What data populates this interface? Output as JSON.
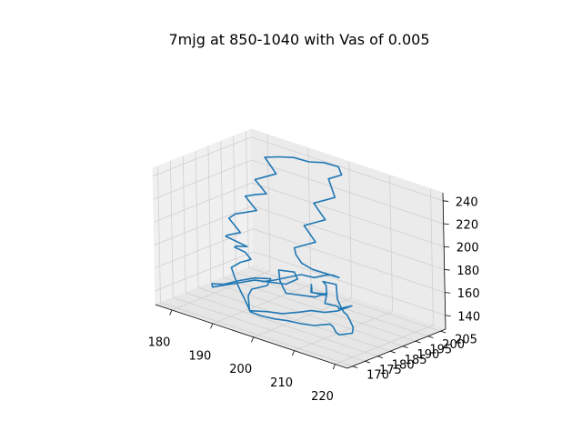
{
  "chart_data": {
    "type": "line3d",
    "title": "7mjg at 850-1040 with Vas of 0.005",
    "xlabel": "",
    "ylabel": "",
    "zlabel": "",
    "x_ticks": [
      "180",
      "190",
      "200",
      "210",
      "220"
    ],
    "y_ticks": [
      "170",
      "175",
      "180",
      "185",
      "190",
      "195",
      "200",
      "205"
    ],
    "z_ticks": [
      "140",
      "160",
      "180",
      "200",
      "220",
      "240"
    ],
    "xlim": [
      176,
      223
    ],
    "ylim": [
      168,
      207
    ],
    "zlim": [
      128,
      247
    ],
    "grid": true,
    "series": [
      {
        "color": "#1f77b4",
        "points": [
          [
            196,
            203,
            129
          ],
          [
            194,
            201,
            131
          ],
          [
            192,
            204,
            133
          ],
          [
            195,
            199,
            134
          ],
          [
            197,
            202,
            132
          ],
          [
            199,
            198,
            130
          ],
          [
            201,
            200,
            128
          ],
          [
            203,
            197,
            131
          ],
          [
            205,
            199,
            134
          ],
          [
            204,
            195,
            132
          ],
          [
            202,
            193,
            130
          ],
          [
            200,
            191,
            131
          ],
          [
            198,
            189,
            129
          ],
          [
            196,
            186,
            128
          ],
          [
            194,
            183,
            130
          ],
          [
            191,
            181,
            129
          ],
          [
            189,
            184,
            131
          ],
          [
            187,
            187,
            132
          ],
          [
            186,
            190,
            134
          ],
          [
            188,
            193,
            137
          ],
          [
            187,
            196,
            139
          ],
          [
            185,
            193,
            140
          ],
          [
            183,
            190,
            138
          ],
          [
            181,
            187,
            135
          ],
          [
            180,
            184,
            137
          ],
          [
            182,
            181,
            139
          ],
          [
            184,
            182,
            142
          ],
          [
            186,
            185,
            144
          ],
          [
            188,
            188,
            146
          ],
          [
            190,
            191,
            144
          ],
          [
            192,
            194,
            142
          ],
          [
            193,
            197,
            145
          ],
          [
            191,
            199,
            147
          ],
          [
            189,
            196,
            149
          ],
          [
            191,
            193,
            151
          ],
          [
            193,
            190,
            150
          ],
          [
            195,
            188,
            148
          ],
          [
            197,
            186,
            147
          ],
          [
            199,
            188,
            146
          ],
          [
            201,
            191,
            144
          ],
          [
            202,
            194,
            146
          ],
          [
            200,
            197,
            148
          ],
          [
            198,
            199,
            147
          ],
          [
            200,
            201,
            145
          ],
          [
            202,
            198,
            143
          ],
          [
            204,
            195,
            142
          ],
          [
            206,
            193,
            140
          ],
          [
            208,
            191,
            139
          ],
          [
            210,
            189,
            141
          ],
          [
            212,
            187,
            140
          ],
          [
            214,
            185,
            138
          ],
          [
            215,
            183,
            136
          ],
          [
            213,
            181,
            134
          ],
          [
            211,
            183,
            132
          ],
          [
            209,
            185,
            133
          ],
          [
            207,
            187,
            131
          ],
          [
            205,
            184,
            130
          ],
          [
            203,
            182,
            131
          ],
          [
            201,
            180,
            133
          ],
          [
            199,
            178,
            134
          ],
          [
            197,
            176,
            136
          ],
          [
            195,
            175,
            138
          ],
          [
            193,
            177,
            140
          ],
          [
            191,
            179,
            142
          ],
          [
            189,
            181,
            143
          ],
          [
            187,
            183,
            145
          ],
          [
            185,
            185,
            148
          ],
          [
            183,
            187,
            152
          ],
          [
            184,
            189,
            156
          ],
          [
            186,
            190,
            160
          ],
          [
            184,
            191,
            163
          ],
          [
            182,
            190,
            166
          ],
          [
            183,
            189,
            169
          ],
          [
            185,
            188,
            172
          ],
          [
            187,
            187,
            175
          ],
          [
            185,
            186,
            178
          ],
          [
            183,
            185,
            181
          ],
          [
            184,
            184,
            184
          ],
          [
            186,
            186,
            187
          ],
          [
            184,
            187,
            190
          ],
          [
            182,
            188,
            193
          ],
          [
            183,
            189,
            197
          ],
          [
            185,
            190,
            200
          ],
          [
            187,
            191,
            203
          ],
          [
            185,
            192,
            206
          ],
          [
            183,
            193,
            209
          ],
          [
            185,
            194,
            212
          ],
          [
            187,
            195,
            214
          ],
          [
            185,
            196,
            217
          ],
          [
            183,
            197,
            220
          ],
          [
            185,
            198,
            224
          ],
          [
            187,
            199,
            228
          ],
          [
            185,
            200,
            232
          ],
          [
            183,
            201,
            236
          ],
          [
            186,
            202,
            239
          ],
          [
            189,
            203,
            241
          ],
          [
            192,
            204,
            240
          ],
          [
            195,
            205,
            242
          ],
          [
            198,
            206,
            241
          ],
          [
            200,
            204,
            238
          ],
          [
            198,
            202,
            234
          ],
          [
            200,
            200,
            230
          ],
          [
            202,
            198,
            226
          ],
          [
            200,
            197,
            222
          ],
          [
            198,
            196,
            218
          ],
          [
            200,
            195,
            214
          ],
          [
            202,
            194,
            210
          ],
          [
            200,
            193,
            206
          ],
          [
            198,
            192,
            202
          ],
          [
            200,
            191,
            198
          ],
          [
            202,
            190,
            194
          ],
          [
            200,
            189,
            190
          ],
          [
            198,
            188,
            186
          ],
          [
            199,
            187,
            182
          ],
          [
            201,
            186,
            178
          ],
          [
            203,
            187,
            174
          ],
          [
            205,
            189,
            171
          ],
          [
            207,
            191,
            168
          ],
          [
            205,
            193,
            165
          ],
          [
            203,
            195,
            162
          ],
          [
            201,
            196,
            159
          ],
          [
            199,
            194,
            156
          ],
          [
            197,
            192,
            158
          ],
          [
            195,
            190,
            155
          ],
          [
            193,
            188,
            152
          ],
          [
            191,
            186,
            150
          ]
        ]
      }
    ]
  }
}
